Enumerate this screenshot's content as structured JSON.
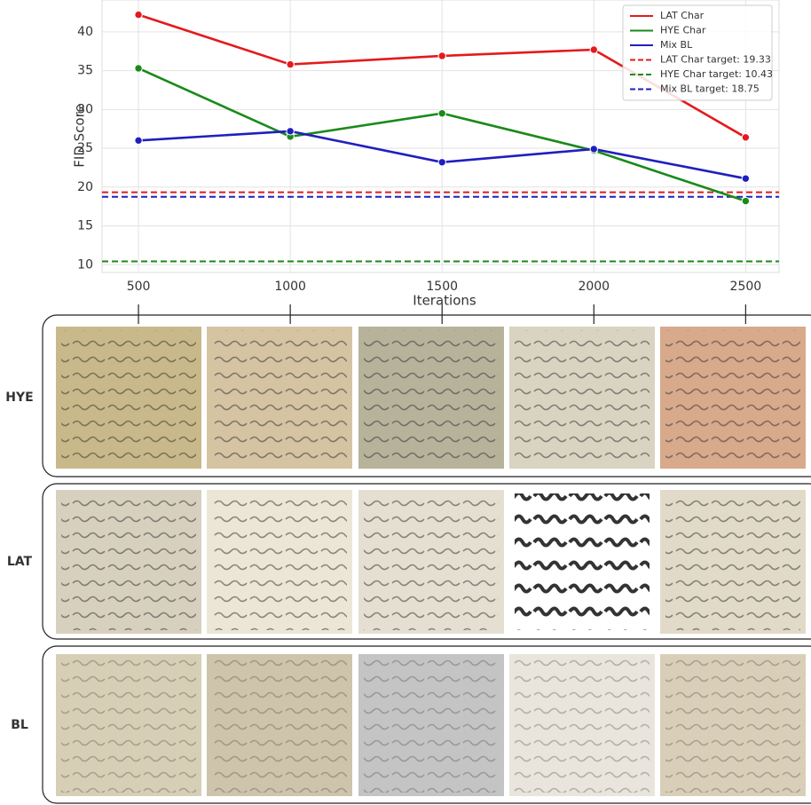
{
  "chart_data": {
    "type": "line",
    "xlabel": "Iterations",
    "ylabel": "FID Score",
    "x": [
      500,
      1000,
      1500,
      2000,
      2500
    ],
    "xlim": [
      380,
      2610
    ],
    "xticks": [
      500,
      1000,
      1500,
      2000,
      2500
    ],
    "ylim": [
      9,
      44.1
    ],
    "yticks": [
      10,
      15,
      20,
      25,
      30,
      35,
      40
    ],
    "grid": true,
    "legend": "upper right",
    "series": [
      {
        "name": "LAT Char",
        "color": "#e41a1c",
        "values": [
          42.2,
          35.8,
          36.9,
          37.7,
          26.4
        ]
      },
      {
        "name": "HYE Char",
        "color": "#1a8a1a",
        "values": [
          35.3,
          26.5,
          29.5,
          24.7,
          18.2
        ]
      },
      {
        "name": "Mix BL",
        "color": "#1f1fbf",
        "values": [
          26.0,
          27.2,
          23.2,
          24.9,
          21.1
        ]
      }
    ],
    "targets": [
      {
        "name": "LAT Char target: 19.33",
        "color": "#e41a1c",
        "value": 19.33
      },
      {
        "name": "HYE Char target: 10.43",
        "color": "#1a8a1a",
        "value": 10.43
      },
      {
        "name": "Mix BL target: 18.75",
        "color": "#1f1fbf",
        "value": 18.75
      }
    ]
  },
  "image_rows": [
    "HYE",
    "LAT",
    "BL"
  ]
}
